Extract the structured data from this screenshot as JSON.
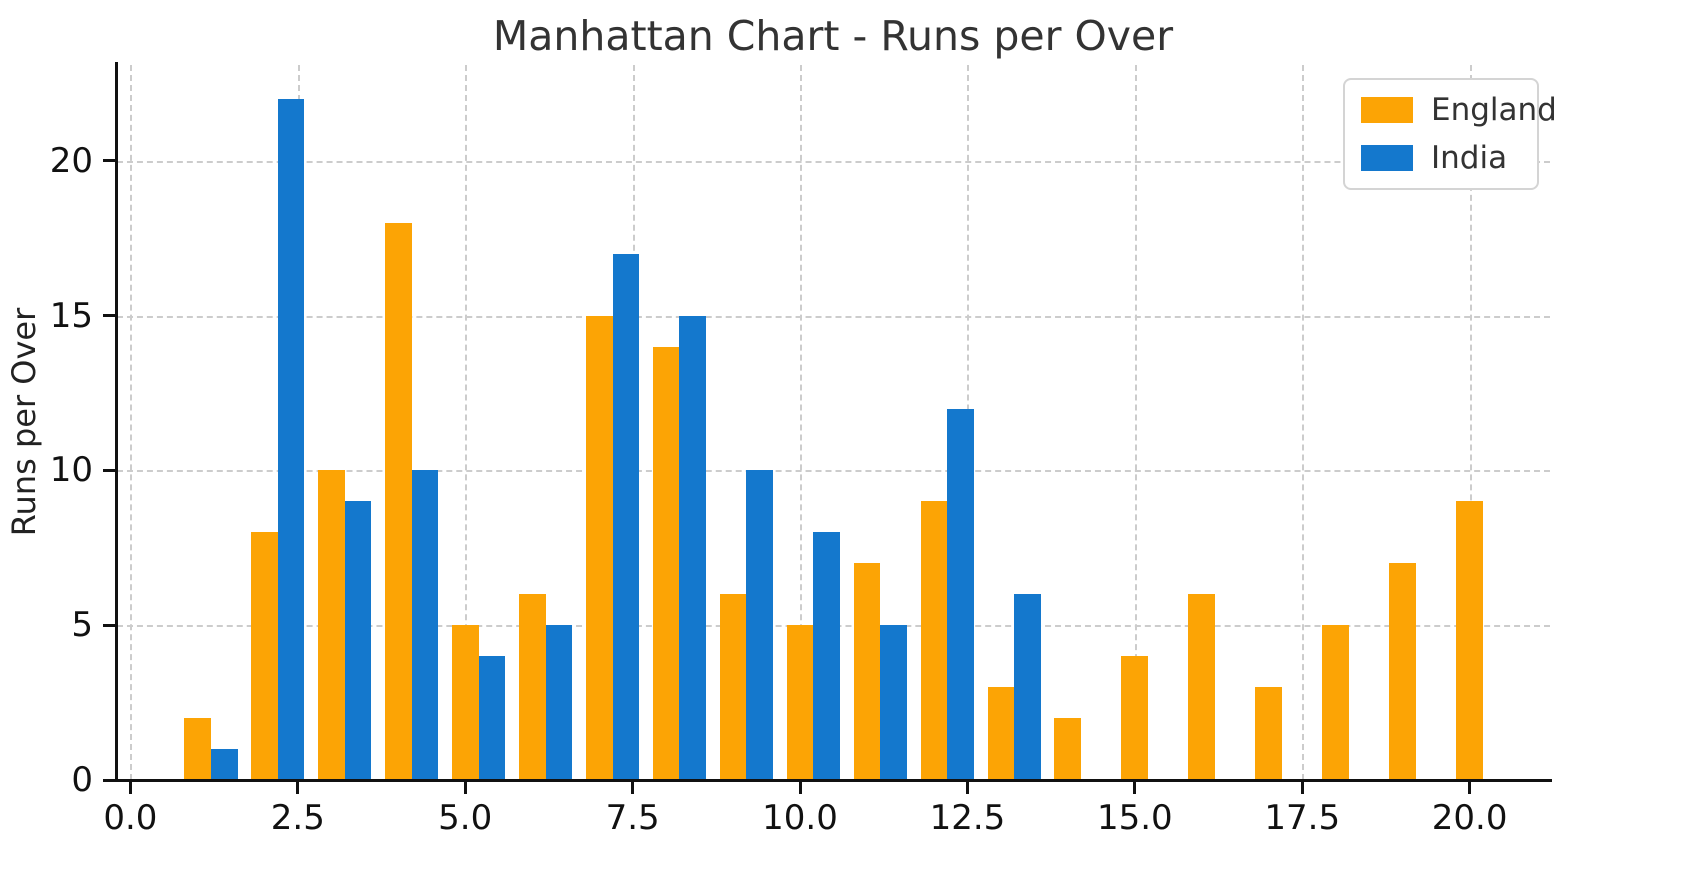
{
  "title": "Manhattan Chart - Runs per Over",
  "y_axis_label": "Runs per Over",
  "legend": {
    "items": [
      {
        "label": "England",
        "color": "#FCA405"
      },
      {
        "label": "India",
        "color": "#1478CD"
      }
    ]
  },
  "chart_data": {
    "type": "bar",
    "title": "Manhattan Chart - Runs per Over",
    "xlabel": "",
    "ylabel": "Runs per Over",
    "x": [
      1,
      2,
      3,
      4,
      5,
      6,
      7,
      8,
      9,
      10,
      11,
      12,
      13,
      14,
      15,
      16,
      17,
      18,
      19,
      20
    ],
    "series": [
      {
        "name": "England",
        "color": "#FCA405",
        "offset": 0.0,
        "values": [
          2,
          8,
          10,
          18,
          5,
          6,
          15,
          14,
          6,
          5,
          7,
          9,
          3,
          2,
          4,
          6,
          3,
          5,
          7,
          9
        ]
      },
      {
        "name": "India",
        "color": "#1478CD",
        "offset": 0.4,
        "values": [
          1,
          22,
          9,
          10,
          4,
          5,
          17,
          15,
          10,
          8,
          5,
          12,
          6
        ]
      }
    ],
    "bar_width": 0.4,
    "xticks": [
      0,
      2.5,
      5,
      7.5,
      10,
      12.5,
      15,
      17.5,
      20
    ],
    "xtick_labels": [
      "0.0",
      "2.5",
      "5.0",
      "7.5",
      "10.0",
      "12.5",
      "15.0",
      "17.5",
      "20.0"
    ],
    "yticks": [
      0,
      5,
      10,
      15,
      20
    ],
    "ytick_labels": [
      "0",
      "5",
      "10",
      "15",
      "20"
    ],
    "xlim": [
      -0.2,
      21.2
    ],
    "ylim": [
      0,
      23.1
    ],
    "grid": true,
    "grid_style": "dashed",
    "legend_position": "upper-right"
  }
}
